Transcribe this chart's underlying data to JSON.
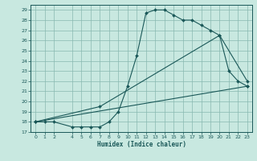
{
  "title": "",
  "xlabel": "Humidex (Indice chaleur)",
  "bg_color": "#c8e8e0",
  "grid_color": "#88b8b0",
  "line_color": "#1a5858",
  "xlim": [
    -0.5,
    23.5
  ],
  "ylim": [
    17,
    29.5
  ],
  "xticks": [
    0,
    1,
    2,
    4,
    5,
    6,
    7,
    8,
    9,
    10,
    11,
    12,
    13,
    14,
    15,
    16,
    17,
    18,
    19,
    20,
    21,
    22,
    23
  ],
  "yticks": [
    17,
    18,
    19,
    20,
    21,
    22,
    23,
    24,
    25,
    26,
    27,
    28,
    29
  ],
  "line1_x": [
    0,
    1,
    2,
    4,
    5,
    6,
    7,
    8,
    9,
    10,
    11,
    12,
    13,
    14,
    15,
    16,
    17,
    18,
    19,
    20,
    21,
    22,
    23
  ],
  "line1_y": [
    18,
    18,
    18,
    17.5,
    17.5,
    17.5,
    17.5,
    18.0,
    19.0,
    21.5,
    24.5,
    28.7,
    29.0,
    29.0,
    28.5,
    28.0,
    28.0,
    27.5,
    27.0,
    26.5,
    23.0,
    22.0,
    21.5
  ],
  "line2_x": [
    0,
    23
  ],
  "line2_y": [
    18,
    21.5
  ],
  "line3_x": [
    0,
    7,
    20,
    23
  ],
  "line3_y": [
    18,
    19.5,
    26.5,
    22.0
  ]
}
